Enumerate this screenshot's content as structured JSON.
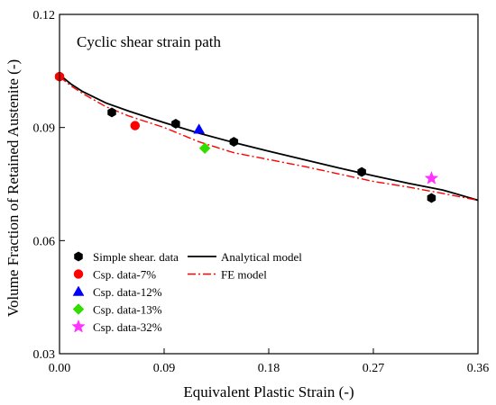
{
  "chart_data": {
    "type": "scatter",
    "annotation": "Cyclic shear strain path",
    "xlabel": "Equivalent Plastic Strain (-)",
    "ylabel": "Volume Fraction of Retained Austenite (-)",
    "xlim": [
      0.0,
      0.36
    ],
    "ylim": [
      0.03,
      0.12
    ],
    "xticks": [
      "0.00",
      "0.09",
      "0.18",
      "0.27",
      "0.36"
    ],
    "yticks": [
      "0.03",
      "0.06",
      "0.09",
      "0.12"
    ],
    "grid": false,
    "legend_position": "bottom-left",
    "series": [
      {
        "name": "Simple shear. data",
        "marker": "hexagon",
        "color": "#000000",
        "x": [
          0.0,
          0.045,
          0.1,
          0.15,
          0.26,
          0.32
        ],
        "y": [
          0.1035,
          0.094,
          0.091,
          0.0862,
          0.0782,
          0.0713
        ]
      },
      {
        "name": "Csp. data-7%",
        "marker": "circle",
        "color": "#ff0000",
        "x": [
          0.0,
          0.065
        ],
        "y": [
          0.1035,
          0.0905
        ]
      },
      {
        "name": "Csp. data-12%",
        "marker": "triangle",
        "color": "#0000ff",
        "x": [
          0.12
        ],
        "y": [
          0.0895
        ]
      },
      {
        "name": "Csp. data-13%",
        "marker": "diamond",
        "color": "#33dd00",
        "x": [
          0.125
        ],
        "y": [
          0.0845
        ]
      },
      {
        "name": "Csp. data-32%",
        "marker": "star",
        "color": "#ff33ff",
        "x": [
          0.32
        ],
        "y": [
          0.0765
        ]
      },
      {
        "name": "Analytical model",
        "line": "solid",
        "color": "#000000",
        "x": [
          0.0,
          0.01,
          0.02,
          0.04,
          0.06,
          0.09,
          0.12,
          0.15,
          0.18,
          0.21,
          0.24,
          0.27,
          0.3,
          0.33,
          0.36
        ],
        "y": [
          0.104,
          0.1015,
          0.0995,
          0.0965,
          0.0943,
          0.0913,
          0.0885,
          0.086,
          0.0837,
          0.0815,
          0.0793,
          0.0772,
          0.0752,
          0.0734,
          0.0707
        ]
      },
      {
        "name": "FE model",
        "line": "dash-dot",
        "color": "#ff0000",
        "x": [
          0.0,
          0.01,
          0.02,
          0.04,
          0.06,
          0.09,
          0.12,
          0.15,
          0.18,
          0.21,
          0.24,
          0.27,
          0.3,
          0.33,
          0.36
        ],
        "y": [
          0.1035,
          0.101,
          0.099,
          0.0955,
          0.093,
          0.09,
          0.0862,
          0.0833,
          0.0815,
          0.0797,
          0.0777,
          0.0757,
          0.0742,
          0.0725,
          0.0707
        ]
      }
    ]
  }
}
